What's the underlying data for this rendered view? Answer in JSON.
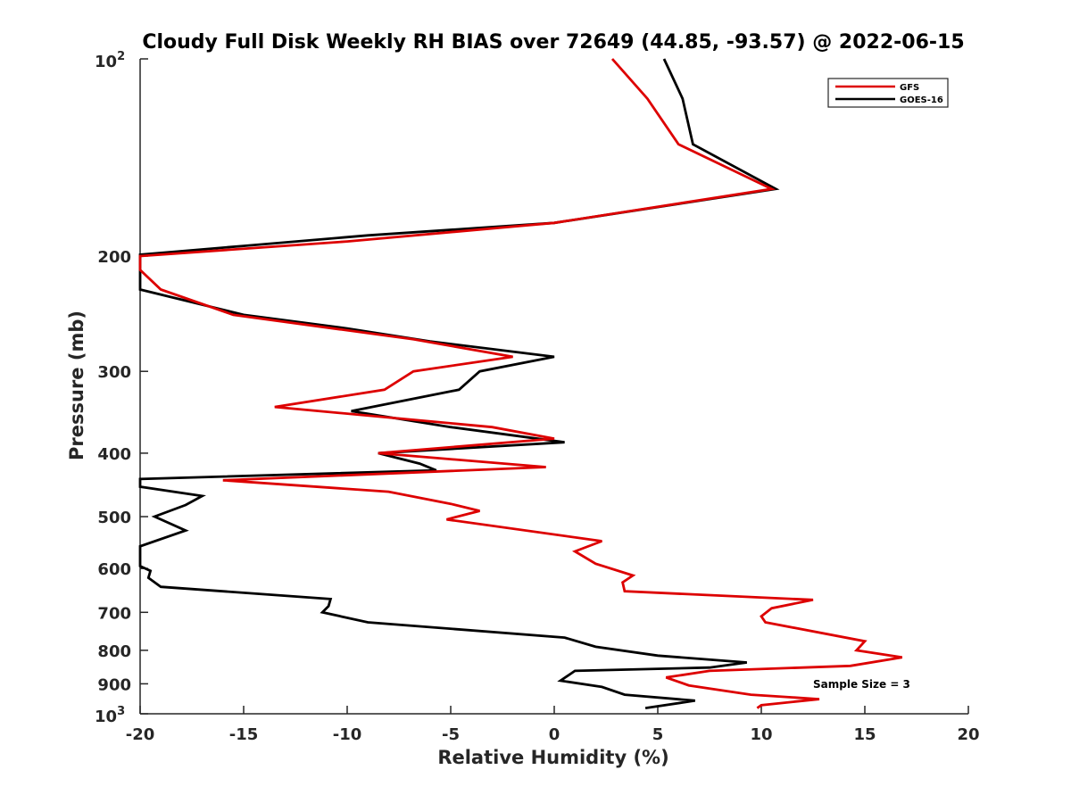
{
  "chart_data": {
    "type": "line",
    "title": "Cloudy Full Disk Weekly RH BIAS over 72649 (44.85, -93.57) @ 2022-06-15",
    "xlabel": "Relative Humidity (%)",
    "ylabel": "Pressure (mb)",
    "xlim": [
      -20,
      20
    ],
    "ylim": [
      1000,
      100
    ],
    "yscale": "log",
    "y_reversed": true,
    "grid": false,
    "legend_position": "top-right",
    "x_ticks": [
      {
        "value": -20,
        "label": "-20"
      },
      {
        "value": -15,
        "label": "-15"
      },
      {
        "value": -10,
        "label": "-10"
      },
      {
        "value": -5,
        "label": "-5"
      },
      {
        "value": 0,
        "label": "0"
      },
      {
        "value": 5,
        "label": "5"
      },
      {
        "value": 10,
        "label": "10"
      },
      {
        "value": 15,
        "label": "15"
      },
      {
        "value": 20,
        "label": "20"
      }
    ],
    "y_ticks": [
      {
        "value": 100,
        "base": "10",
        "exp": "2"
      },
      {
        "value": 200,
        "label": "200"
      },
      {
        "value": 300,
        "label": "300"
      },
      {
        "value": 400,
        "label": "400"
      },
      {
        "value": 500,
        "label": "500"
      },
      {
        "value": 600,
        "label": "600"
      },
      {
        "value": 700,
        "label": "700"
      },
      {
        "value": 800,
        "label": "800"
      },
      {
        "value": 900,
        "label": "900"
      },
      {
        "value": 1000,
        "base": "10",
        "exp": "3"
      }
    ],
    "series": [
      {
        "name": "GFS",
        "color": "#dd0000",
        "points": [
          [
            2.8,
            100
          ],
          [
            4.5,
            115
          ],
          [
            6.0,
            135
          ],
          [
            10.5,
            158
          ],
          [
            0.0,
            178
          ],
          [
            -10.0,
            190
          ],
          [
            -20.0,
            200
          ],
          [
            -20.0,
            210
          ],
          [
            -19.0,
            225
          ],
          [
            -15.5,
            246
          ],
          [
            -6.8,
            268
          ],
          [
            -2.0,
            285
          ],
          [
            -6.8,
            300
          ],
          [
            -8.2,
            320
          ],
          [
            -13.5,
            340
          ],
          [
            -3.0,
            365
          ],
          [
            0.0,
            380
          ],
          [
            -8.5,
            400
          ],
          [
            -0.4,
            420
          ],
          [
            -16.0,
            440
          ],
          [
            -8.0,
            458
          ],
          [
            -5.0,
            478
          ],
          [
            -3.6,
            490
          ],
          [
            -5.2,
            505
          ],
          [
            2.3,
            545
          ],
          [
            1.0,
            565
          ],
          [
            2.0,
            590
          ],
          [
            3.8,
            615
          ],
          [
            3.3,
            630
          ],
          [
            3.4,
            650
          ],
          [
            12.5,
            670
          ],
          [
            10.5,
            690
          ],
          [
            10.0,
            710
          ],
          [
            10.2,
            725
          ],
          [
            15.0,
            775
          ],
          [
            14.6,
            800
          ],
          [
            16.8,
            820
          ],
          [
            14.3,
            845
          ],
          [
            7.5,
            860
          ],
          [
            5.4,
            880
          ],
          [
            6.5,
            905
          ],
          [
            9.5,
            935
          ],
          [
            12.8,
            950
          ],
          [
            10.0,
            970
          ],
          [
            9.8,
            980
          ]
        ]
      },
      {
        "name": "GOES-16",
        "color": "#000000",
        "points": [
          [
            5.3,
            100
          ],
          [
            6.2,
            115
          ],
          [
            6.7,
            135
          ],
          [
            10.7,
            158
          ],
          [
            0.0,
            178
          ],
          [
            -9.0,
            186
          ],
          [
            -15.0,
            193
          ],
          [
            -20.0,
            199
          ],
          [
            -20.0,
            225
          ],
          [
            -15.0,
            246
          ],
          [
            -10.0,
            258
          ],
          [
            -6.0,
            270
          ],
          [
            0.0,
            285
          ],
          [
            -3.6,
            300
          ],
          [
            -4.6,
            320
          ],
          [
            -9.8,
            345
          ],
          [
            -5.0,
            365
          ],
          [
            0.5,
            385
          ],
          [
            -8.5,
            400
          ],
          [
            -6.5,
            415
          ],
          [
            -5.7,
            425
          ],
          [
            -20.0,
            438
          ],
          [
            -20.0,
            450
          ],
          [
            -17.0,
            465
          ],
          [
            -17.8,
            480
          ],
          [
            -19.3,
            500
          ],
          [
            -17.8,
            525
          ],
          [
            -20.0,
            555
          ],
          [
            -20.0,
            595
          ],
          [
            -19.5,
            605
          ],
          [
            -19.6,
            620
          ],
          [
            -19.0,
            640
          ],
          [
            -10.8,
            668
          ],
          [
            -10.9,
            685
          ],
          [
            -11.2,
            700
          ],
          [
            -9.0,
            725
          ],
          [
            0.5,
            765
          ],
          [
            2.0,
            790
          ],
          [
            5.0,
            815
          ],
          [
            9.3,
            835
          ],
          [
            7.5,
            850
          ],
          [
            1.0,
            860
          ],
          [
            0.3,
            890
          ],
          [
            2.3,
            910
          ],
          [
            3.4,
            935
          ],
          [
            6.8,
            955
          ],
          [
            4.4,
            980
          ]
        ]
      }
    ],
    "annotation": "Sample Size = 3"
  }
}
